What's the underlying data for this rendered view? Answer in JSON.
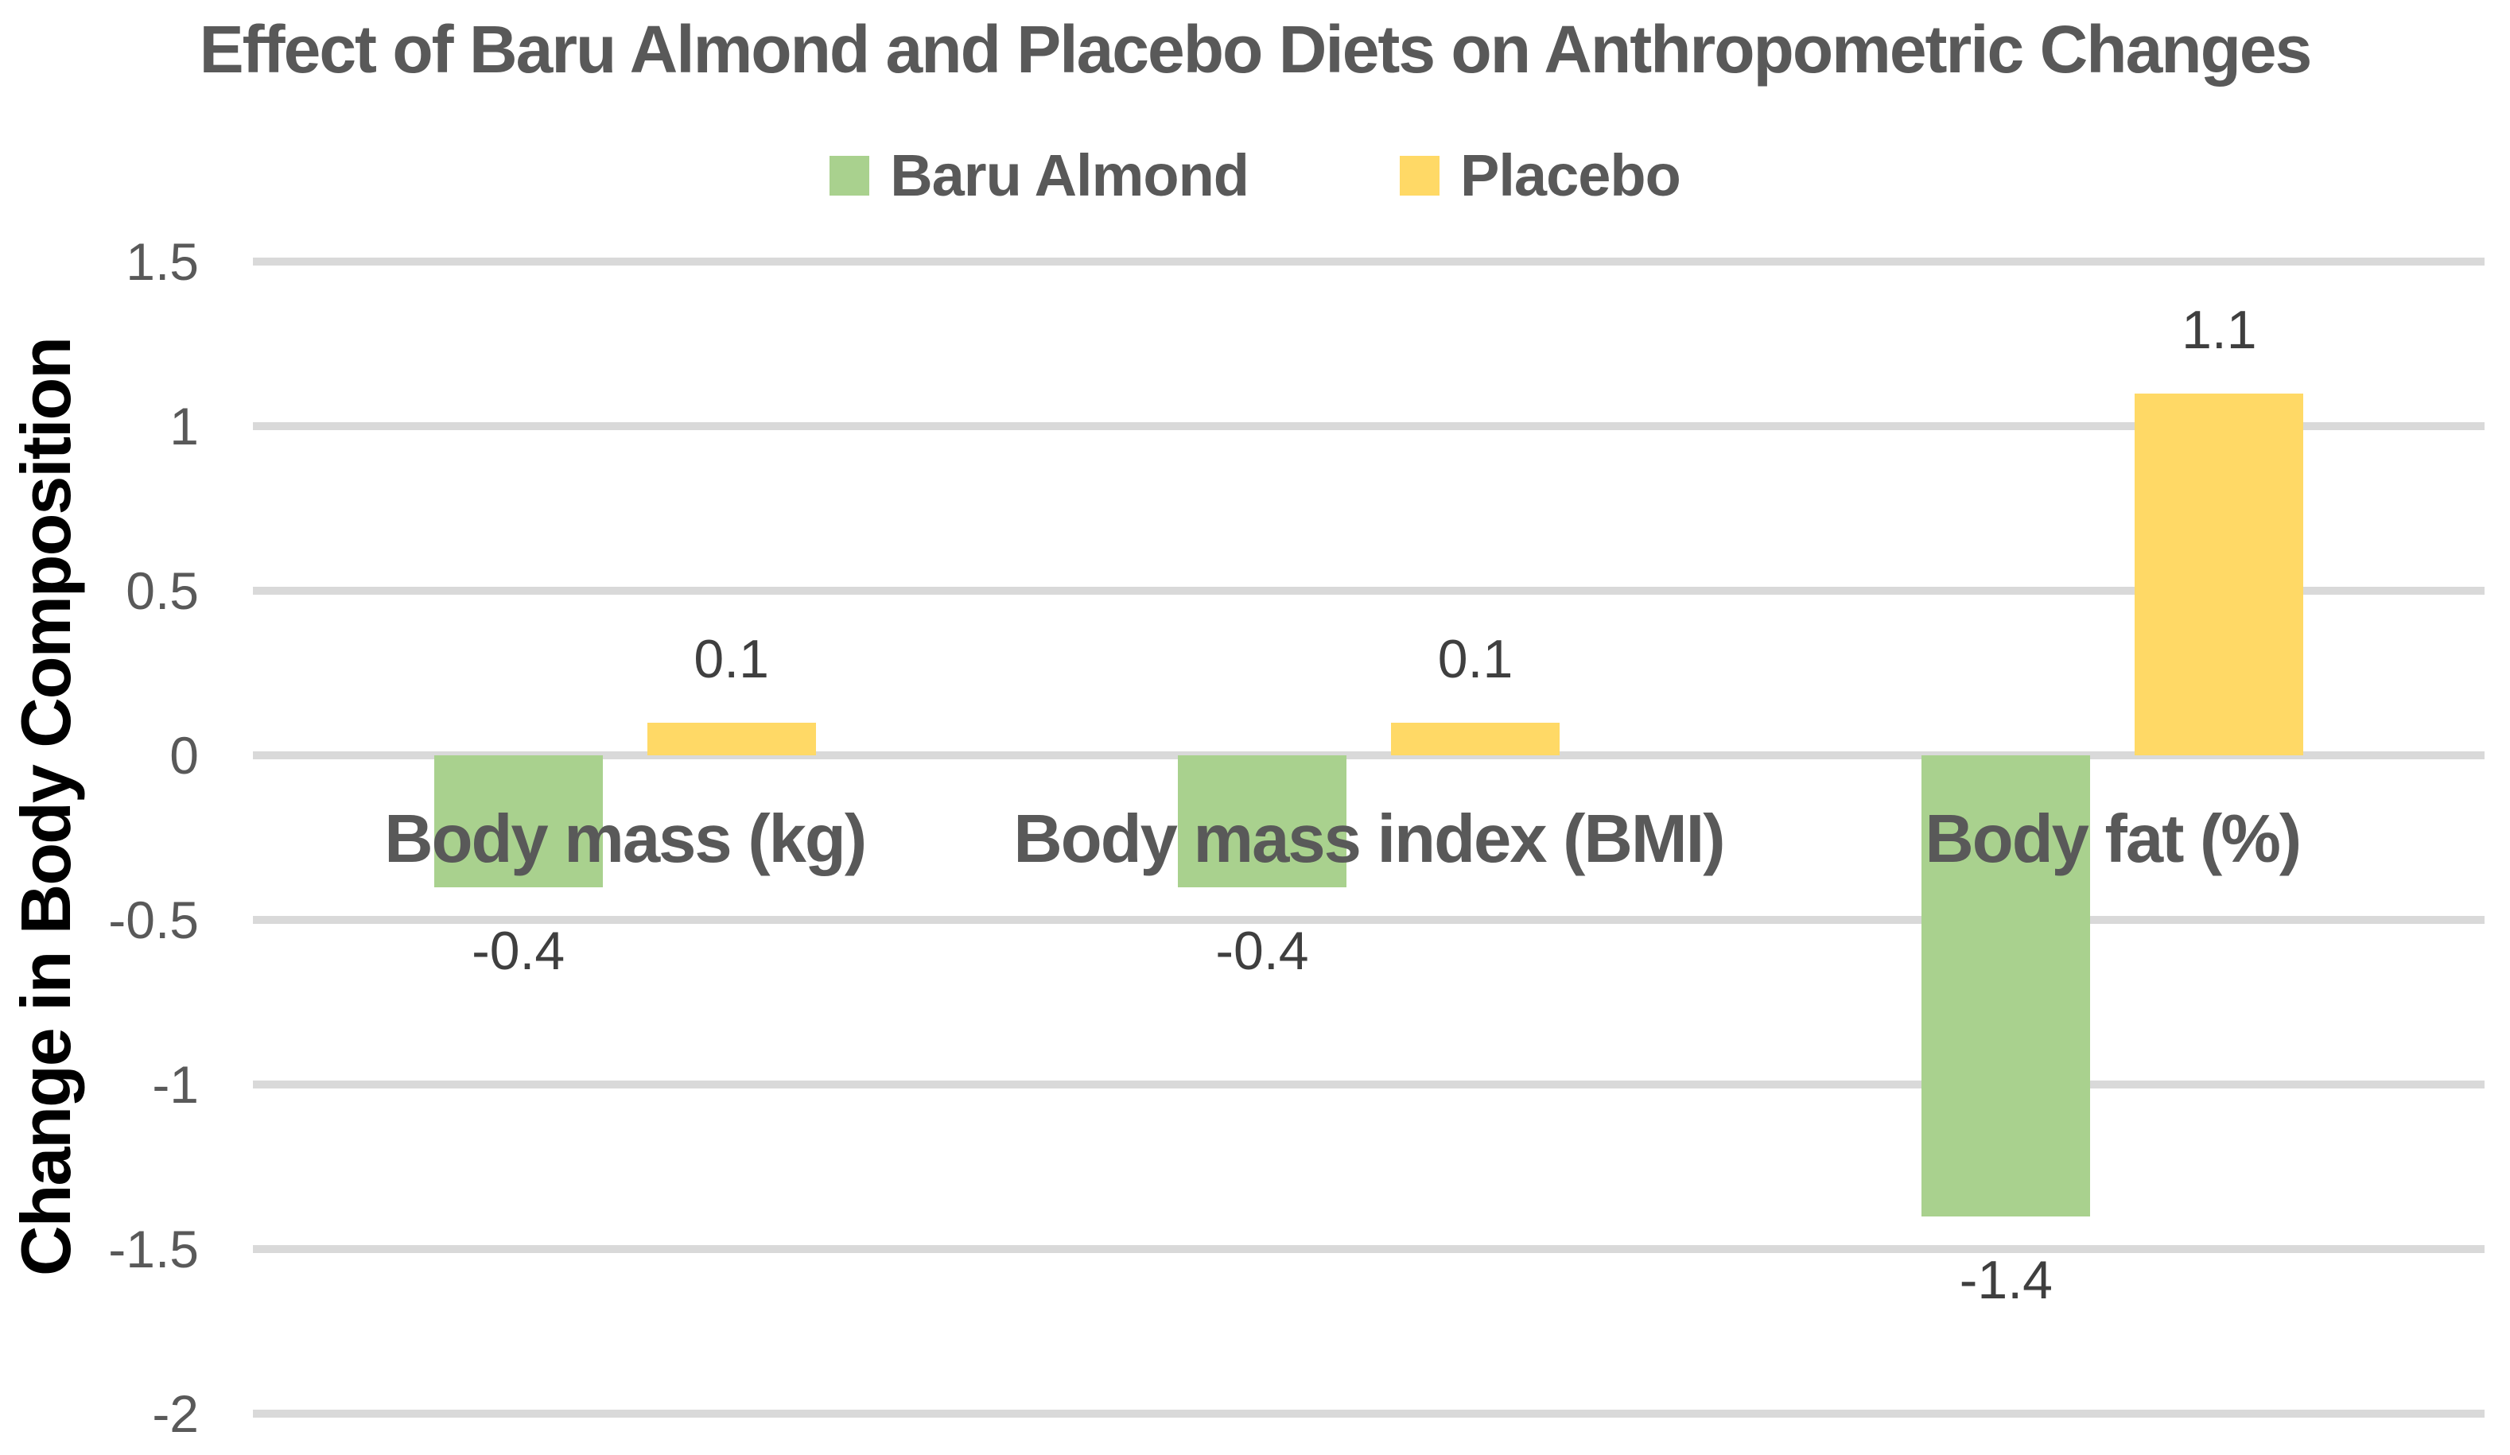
{
  "chart_data": {
    "type": "bar",
    "title": "Effect of Baru Almond and Placebo Diets on Anthropometric Changes",
    "ylabel": "Change in Body Composition",
    "xlabel": "",
    "categories": [
      "Body mass (kg)",
      "Body mass index (BMI)",
      "Body fat (%)"
    ],
    "series": [
      {
        "name": "Baru Almond",
        "color": "#A9D18E",
        "values": [
          -0.4,
          -0.4,
          -1.4
        ],
        "labels": [
          "-0.4",
          "-0.4",
          "-1.4"
        ]
      },
      {
        "name": "Placebo",
        "color": "#FFD966",
        "values": [
          0.1,
          0.1,
          1.1
        ],
        "labels": [
          "0.1",
          "0.1",
          "1.1"
        ]
      }
    ],
    "yticks": [
      {
        "value": 1.5,
        "label": "1.5"
      },
      {
        "value": 1,
        "label": "1"
      },
      {
        "value": 0.5,
        "label": "0.5"
      },
      {
        "value": 0,
        "label": "0"
      },
      {
        "value": -0.5,
        "label": "-0.5"
      },
      {
        "value": -1,
        "label": "-1"
      },
      {
        "value": -1.5,
        "label": "-1.5"
      },
      {
        "value": -2,
        "label": "-2"
      }
    ],
    "ylim": [
      -2,
      1.5
    ],
    "grid": "horizontal",
    "legend_position": "top",
    "data_labels": "outside-end",
    "theme": {
      "background": "#FFFFFF",
      "grid_color": "#D9D9D9",
      "tick_color": "#595959",
      "title_color": "#595959",
      "category_label_color": "#595959",
      "data_label_color": "#3F3F3F",
      "axis_title_color": "#000000"
    }
  }
}
